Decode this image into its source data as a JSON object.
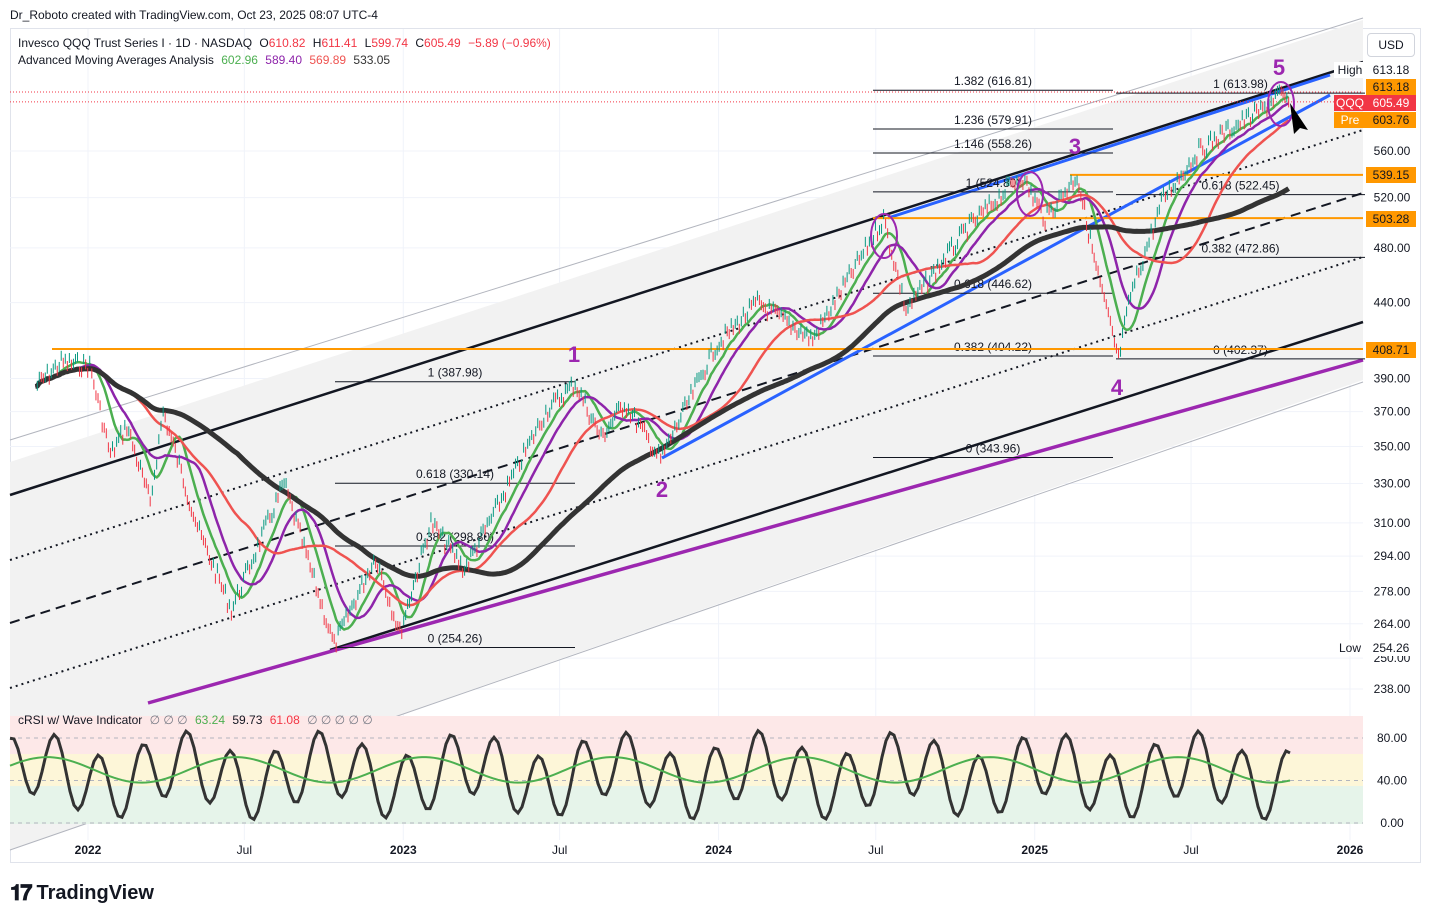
{
  "credit": "Dr_Roboto created with TradingView.com, Oct 23, 2025 08:07 UTC-4",
  "legend": {
    "symbol": "Invesco QQQ Trust Series I · 1D · NASDAQ",
    "o_label": "O",
    "o": "610.82",
    "h_label": "H",
    "h": "611.41",
    "l_label": "L",
    "l": "599.74",
    "c_label": "C",
    "c": "605.49",
    "chg": "−5.89 (−0.96%)",
    "ma_title": "Advanced Moving Averages Analysis",
    "ma1": "602.96",
    "ma2": "589.40",
    "ma3": "569.89",
    "ma4": "533.05",
    "rsi_title": "cRSI w/ Wave Indicator",
    "rsi_empty": "∅ ∅ ∅",
    "rsi1": "63.24",
    "rsi2": "59.73",
    "rsi3": "61.08",
    "rsi_empty2": "∅ ∅ ∅ ∅ ∅"
  },
  "currency": "USD",
  "brand": "TradingView",
  "colors": {
    "green": "#089981",
    "red": "#f23645",
    "orange": "#ff9800",
    "purple": "#9c27b0",
    "blue": "#2962ff",
    "black": "#131722",
    "ma_green": "#4caf50",
    "ma_purple": "#8e24aa",
    "ma_red": "#ef5350",
    "ma_black": "#333333"
  },
  "chart_data": {
    "type": "line",
    "title": "Invesco QQQ Trust Series I",
    "ylabel": "",
    "y_scale": "log",
    "ylim": [
      230,
      660
    ],
    "y_ticks": [
      238.0,
      250.0,
      264.0,
      278.0,
      294.0,
      310.0,
      330.0,
      350.0,
      370.0,
      390.0,
      440.0,
      480.0,
      520.0,
      560.0
    ],
    "x_ticks": [
      "2022",
      "Jul",
      "2023",
      "Jul",
      "2024",
      "Jul",
      "2025",
      "Jul",
      "2026"
    ],
    "price_labels": [
      {
        "text": "High",
        "value": "613.18"
      },
      {
        "text": "",
        "value": "613.18"
      },
      {
        "text": "QQQ",
        "value": "605.49"
      },
      {
        "text": "Pre",
        "value": "603.76"
      },
      {
        "text": "",
        "value": "539.15"
      },
      {
        "text": "",
        "value": "503.28"
      },
      {
        "text": "",
        "value": "408.71"
      },
      {
        "text": "Low",
        "value": "254.26"
      }
    ],
    "fib_labels": [
      "1.382 (616.81)",
      "1 (613.98)",
      "1.236 (579.91)",
      "1.146 (558.26)",
      "1 (524.80)",
      "0.618 (522.45)",
      "0.382 (472.86)",
      "0.618 (446.62)",
      "0.382 (404.22)",
      "0 (402.37)",
      "1 (387.98)",
      "0 (343.96)",
      "0.618 (330.14)",
      "0.382 (298.80)",
      "0 (254.26)"
    ],
    "wave_labels": [
      "1",
      "2",
      "3",
      "4",
      "5"
    ],
    "series": [
      {
        "values": [
          [
            "2021-11-01",
            385
          ],
          [
            "2021-12-01",
            400
          ],
          [
            "2022-01-03",
            398
          ],
          [
            "2022-01-27",
            345
          ],
          [
            "2022-02-15",
            362
          ],
          [
            "2022-03-14",
            320
          ],
          [
            "2022-03-29",
            370
          ],
          [
            "2022-05-10",
            305
          ],
          [
            "2022-06-16",
            270
          ],
          [
            "2022-08-16",
            330
          ],
          [
            "2022-10-13",
            255
          ],
          [
            "2022-11-30",
            294
          ],
          [
            "2022-12-28",
            260
          ],
          [
            "2023-02-02",
            310
          ],
          [
            "2023-03-13",
            288
          ],
          [
            "2023-04-20",
            318
          ],
          [
            "2023-06-15",
            370
          ],
          [
            "2023-07-19",
            387
          ],
          [
            "2023-08-18",
            355
          ],
          [
            "2023-09-14",
            375
          ],
          [
            "2023-10-26",
            343
          ],
          [
            "2023-12-28",
            410
          ],
          [
            "2024-02-15",
            440
          ],
          [
            "2024-04-19",
            415
          ],
          [
            "2024-07-10",
            503
          ],
          [
            "2024-08-05",
            435
          ],
          [
            "2024-10-15",
            495
          ],
          [
            "2024-12-16",
            539
          ],
          [
            "2025-01-13",
            503
          ],
          [
            "2025-02-19",
            539
          ],
          [
            "2025-03-13",
            465
          ],
          [
            "2025-04-08",
            402
          ],
          [
            "2025-04-22",
            445
          ],
          [
            "2025-05-30",
            520
          ],
          [
            "2025-07-10",
            560
          ],
          [
            "2025-08-15",
            580
          ],
          [
            "2025-09-22",
            598
          ],
          [
            "2025-10-09",
            613
          ],
          [
            "2025-10-22",
            605
          ]
        ]
      }
    ],
    "rsi_y_ticks": [
      0.0,
      40.0,
      80.0
    ]
  }
}
